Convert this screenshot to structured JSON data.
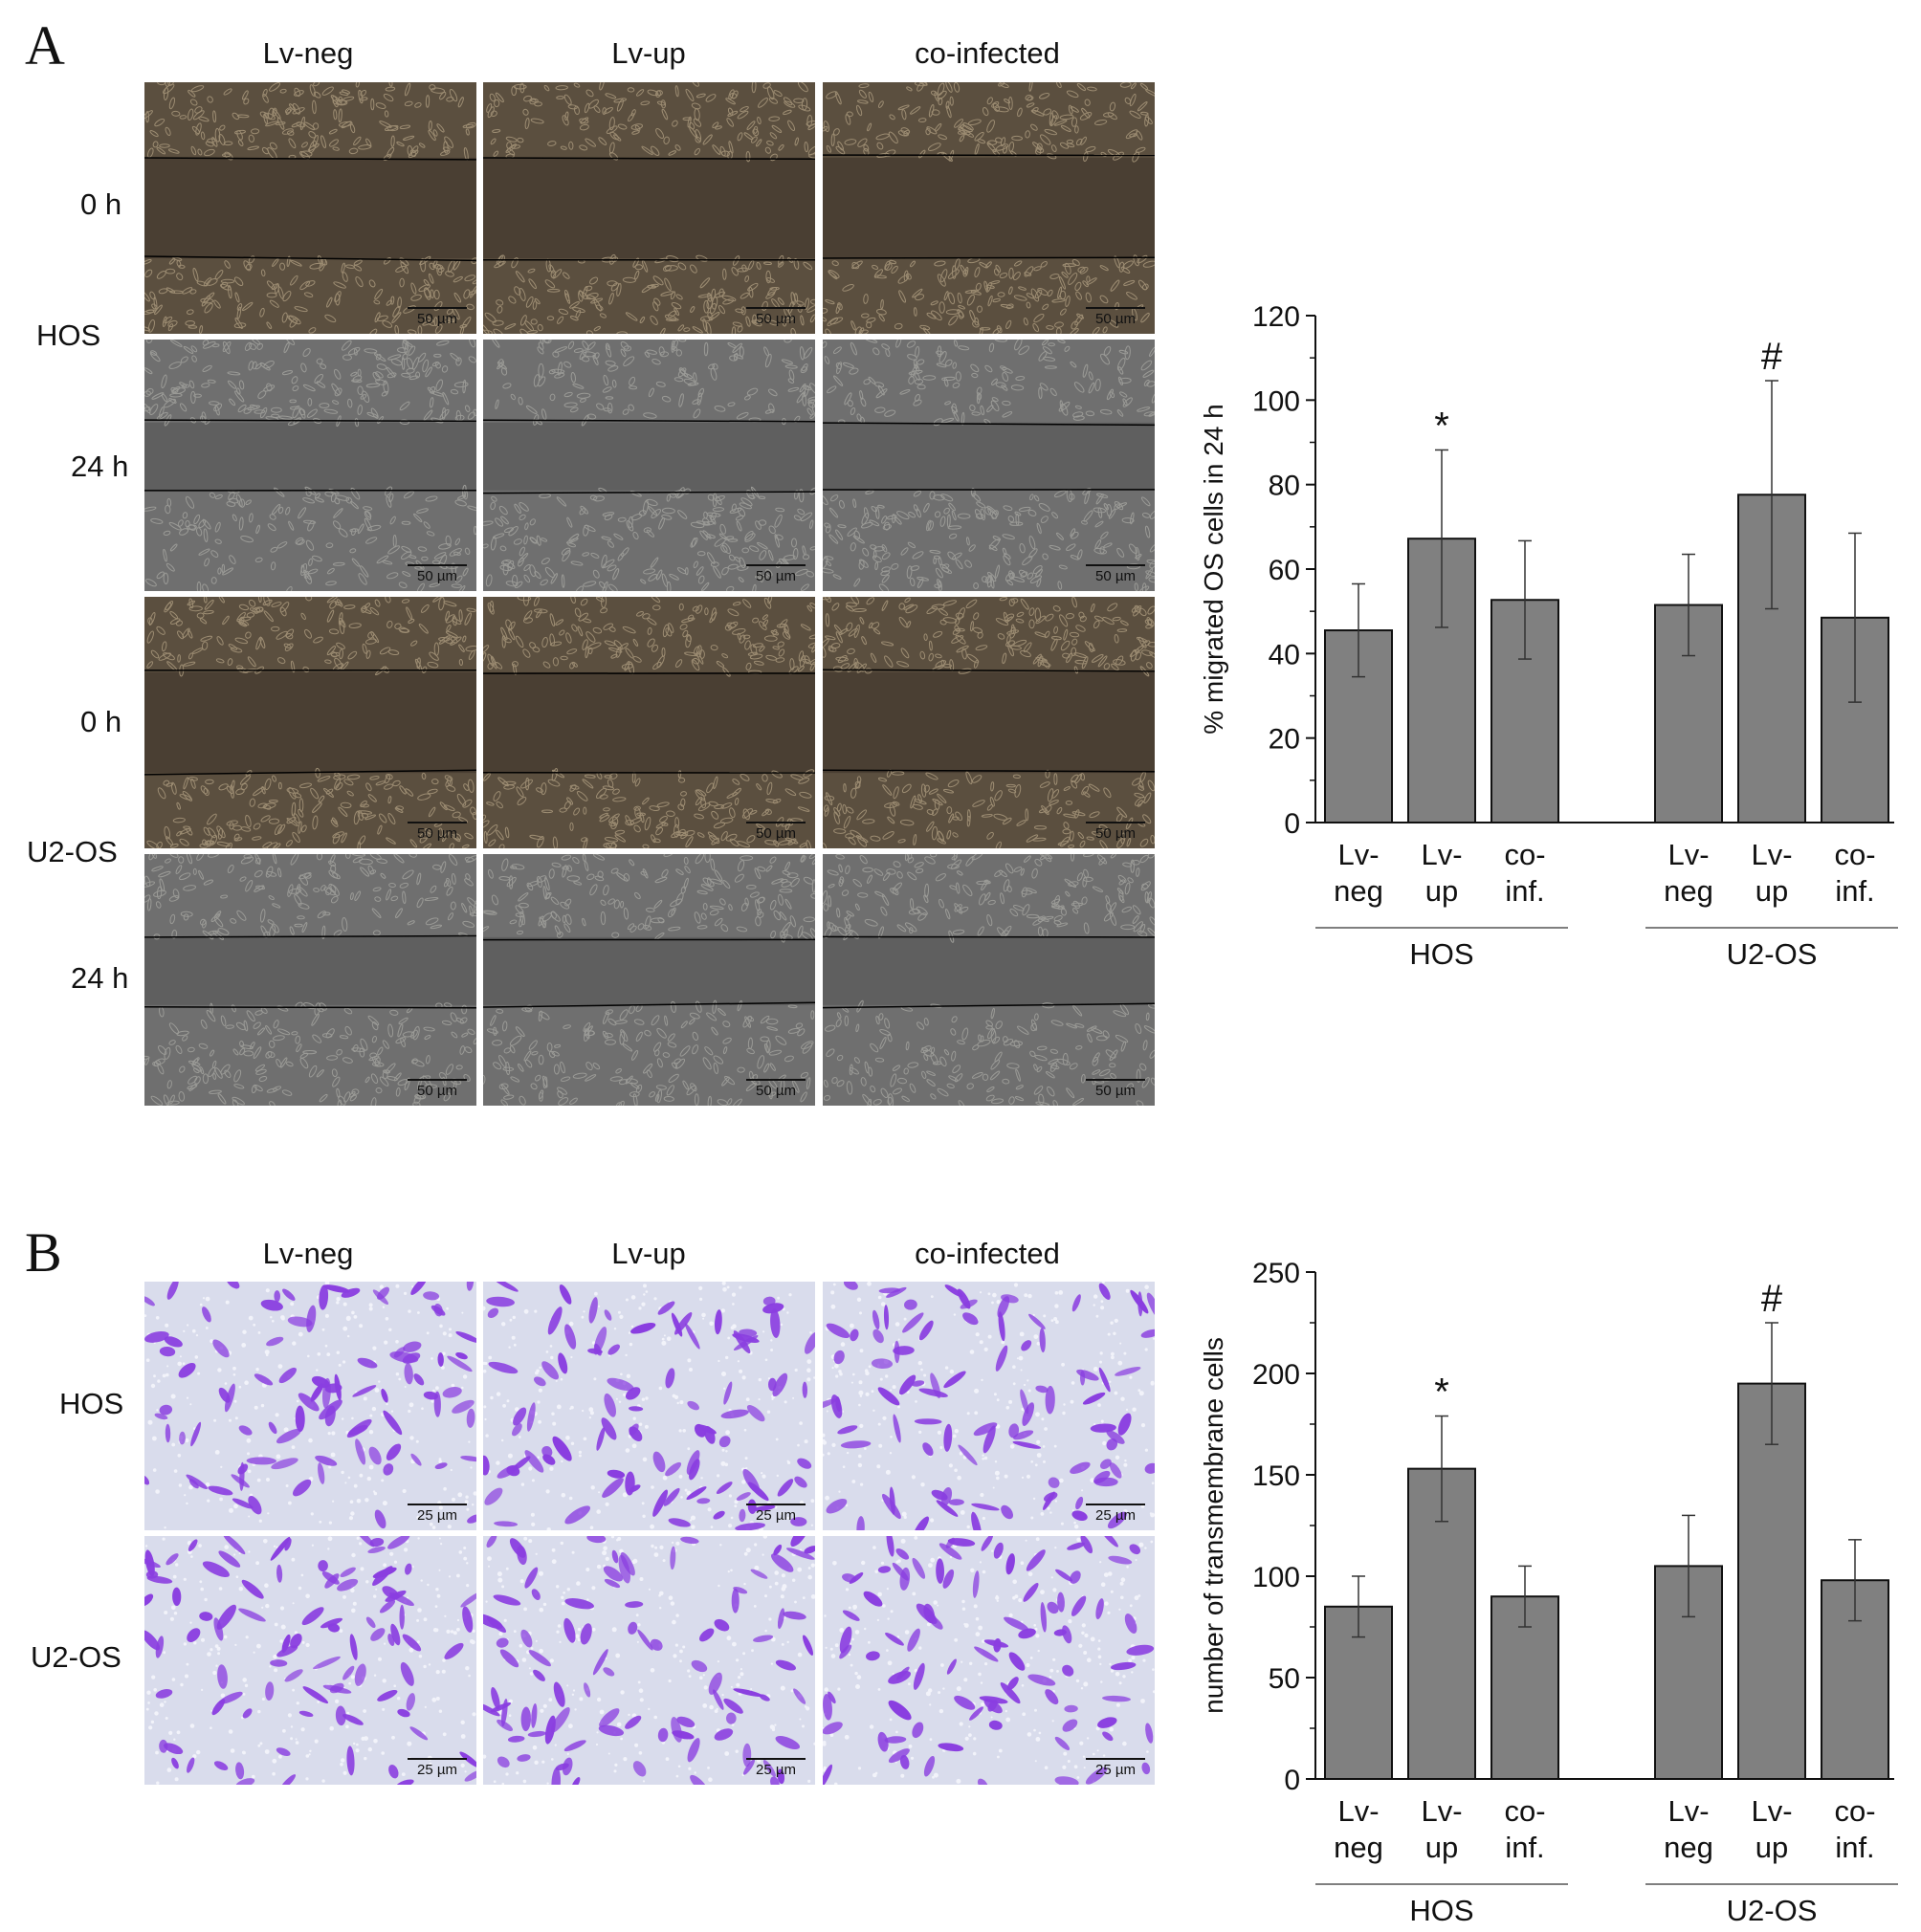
{
  "panel_a": {
    "letter": "A",
    "columns": [
      "Lv-neg",
      "Lv-up",
      "co-infected"
    ],
    "time_labels": [
      "0 h",
      "24 h",
      "0 h",
      "24 h"
    ],
    "cell_lines": [
      "HOS",
      "U2-OS"
    ],
    "scale_label": "50 µm"
  },
  "panel_b": {
    "letter": "B",
    "columns": [
      "Lv-neg",
      "Lv-up",
      "co-infected"
    ],
    "cell_lines": [
      "HOS",
      "U2-OS"
    ],
    "scale_label": "25 µm"
  },
  "colors": {
    "bar": "#808080",
    "wound_dark": "#5b4f3f",
    "wound_grey": "#6f6f6f",
    "crystal_violet": "#8a3ee0",
    "membrane_bg": "#d9dcec"
  },
  "chart_data": [
    {
      "type": "bar",
      "ylabel": "% migrated OS cells in 24 h",
      "ylim": [
        0,
        120
      ],
      "yticks": [
        0,
        20,
        40,
        60,
        80,
        100,
        120
      ],
      "groups": [
        {
          "name": "HOS",
          "categories": [
            "Lv-\nneg",
            "Lv-\nup",
            "co-\ninf."
          ],
          "values": [
            45.5,
            67.2,
            52.7
          ],
          "errors": [
            11,
            21,
            14
          ],
          "markers": [
            "",
            "*",
            ""
          ]
        },
        {
          "name": "U2-OS",
          "categories": [
            "Lv-\nneg",
            "Lv-\nup",
            "co-\ninf."
          ],
          "values": [
            51.5,
            77.6,
            48.5
          ],
          "errors": [
            12,
            27,
            20
          ],
          "markers": [
            "",
            "#",
            ""
          ]
        }
      ]
    },
    {
      "type": "bar",
      "ylabel": "number of transmembrane cells",
      "ylim": [
        0,
        250
      ],
      "yticks": [
        0,
        50,
        100,
        150,
        200,
        250
      ],
      "groups": [
        {
          "name": "HOS",
          "categories": [
            "Lv-\nneg",
            "Lv-\nup",
            "co-\ninf."
          ],
          "values": [
            85,
            153,
            90
          ],
          "errors": [
            15,
            26,
            15
          ],
          "markers": [
            "",
            "*",
            ""
          ]
        },
        {
          "name": "U2-OS",
          "categories": [
            "Lv-\nneg",
            "Lv-\nup",
            "co-\ninf."
          ],
          "values": [
            105,
            195,
            98
          ],
          "errors": [
            25,
            30,
            20
          ],
          "markers": [
            "",
            "#",
            ""
          ]
        }
      ]
    }
  ]
}
